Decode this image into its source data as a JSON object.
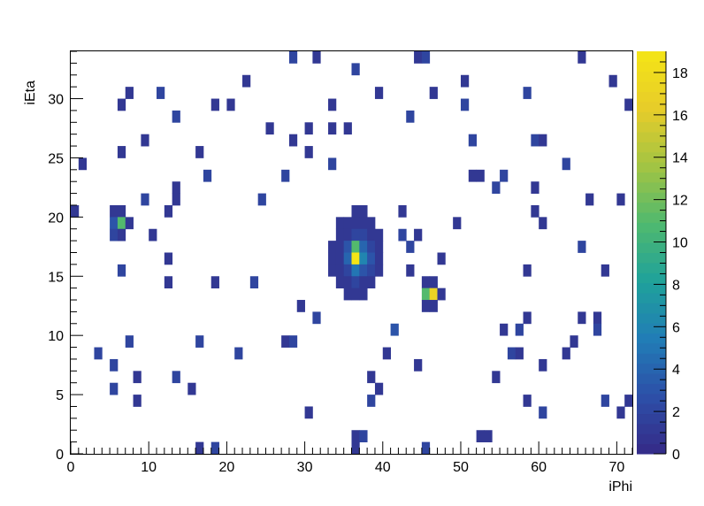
{
  "chart_data": {
    "type": "heatmap",
    "xlabel": "iPhi",
    "ylabel": "iEta",
    "xlim": [
      0,
      72
    ],
    "ylim": [
      0,
      34
    ],
    "zlim": [
      0,
      19
    ],
    "x_ticks": [
      0,
      10,
      20,
      30,
      40,
      50,
      60,
      70
    ],
    "y_ticks": [
      0,
      5,
      10,
      15,
      20,
      25,
      30
    ],
    "z_ticks": [
      0,
      2,
      4,
      6,
      8,
      10,
      12,
      14,
      16,
      18
    ],
    "palette": [
      "#352a87",
      "#2d4fa8",
      "#217db6",
      "#1fa19b",
      "#4fb96f",
      "#a2c443",
      "#e7cc2a",
      "#f4e516"
    ],
    "cells": [
      [
        28,
        33,
        2
      ],
      [
        31,
        33,
        1
      ],
      [
        44,
        33,
        1
      ],
      [
        45,
        33,
        2
      ],
      [
        65,
        33,
        1
      ],
      [
        36,
        32,
        2
      ],
      [
        22,
        31,
        1
      ],
      [
        50,
        31,
        1
      ],
      [
        69,
        31,
        1
      ],
      [
        7,
        30,
        1
      ],
      [
        11,
        30,
        2
      ],
      [
        39,
        30,
        1
      ],
      [
        46,
        30,
        1
      ],
      [
        58,
        30,
        2
      ],
      [
        6,
        29,
        1
      ],
      [
        18,
        29,
        1
      ],
      [
        20,
        29,
        1
      ],
      [
        33,
        29,
        1
      ],
      [
        50,
        29,
        2
      ],
      [
        71,
        29,
        1
      ],
      [
        13,
        28,
        2
      ],
      [
        43,
        28,
        2
      ],
      [
        25,
        27,
        1
      ],
      [
        30,
        27,
        1
      ],
      [
        33,
        27,
        1
      ],
      [
        35,
        27,
        1
      ],
      [
        9,
        26,
        1
      ],
      [
        28,
        26,
        1
      ],
      [
        51,
        26,
        2
      ],
      [
        59,
        26,
        2
      ],
      [
        60,
        26,
        1
      ],
      [
        6,
        25,
        1
      ],
      [
        16,
        25,
        1
      ],
      [
        30,
        25,
        1
      ],
      [
        1,
        24,
        1
      ],
      [
        33,
        24,
        2
      ],
      [
        63,
        24,
        2
      ],
      [
        17,
        23,
        2
      ],
      [
        27,
        23,
        2
      ],
      [
        51,
        23,
        1
      ],
      [
        52,
        23,
        1
      ],
      [
        55,
        23,
        2
      ],
      [
        13,
        22,
        1
      ],
      [
        54,
        22,
        2
      ],
      [
        59,
        22,
        1
      ],
      [
        9,
        21,
        2
      ],
      [
        13,
        21,
        1
      ],
      [
        24,
        21,
        2
      ],
      [
        66,
        21,
        1
      ],
      [
        70,
        21,
        1
      ],
      [
        0,
        20,
        1
      ],
      [
        5,
        20,
        1
      ],
      [
        6,
        20,
        1
      ],
      [
        12,
        20,
        1
      ],
      [
        36,
        20,
        1
      ],
      [
        37,
        20,
        1
      ],
      [
        42,
        20,
        1
      ],
      [
        59,
        20,
        1
      ],
      [
        5,
        19,
        3
      ],
      [
        6,
        19,
        11
      ],
      [
        7,
        19,
        1
      ],
      [
        34,
        19,
        1
      ],
      [
        35,
        19,
        1
      ],
      [
        36,
        19,
        1
      ],
      [
        37,
        19,
        1
      ],
      [
        38,
        19,
        1
      ],
      [
        49,
        19,
        1
      ],
      [
        60,
        19,
        1
      ],
      [
        5,
        18,
        2
      ],
      [
        6,
        18,
        1
      ],
      [
        10,
        18,
        1
      ],
      [
        34,
        18,
        1
      ],
      [
        35,
        18,
        1
      ],
      [
        36,
        18,
        2
      ],
      [
        37,
        18,
        2
      ],
      [
        38,
        18,
        1
      ],
      [
        39,
        18,
        1
      ],
      [
        42,
        18,
        2
      ],
      [
        44,
        18,
        1
      ],
      [
        33,
        17,
        1
      ],
      [
        34,
        17,
        1
      ],
      [
        35,
        17,
        3
      ],
      [
        36,
        17,
        11
      ],
      [
        37,
        17,
        4
      ],
      [
        38,
        17,
        2
      ],
      [
        39,
        17,
        1
      ],
      [
        43,
        17,
        2
      ],
      [
        65,
        17,
        2
      ],
      [
        12,
        16,
        1
      ],
      [
        33,
        16,
        1
      ],
      [
        34,
        16,
        1
      ],
      [
        35,
        16,
        4
      ],
      [
        36,
        16,
        19
      ],
      [
        37,
        16,
        6
      ],
      [
        38,
        16,
        3
      ],
      [
        39,
        16,
        1
      ],
      [
        47,
        16,
        1
      ],
      [
        6,
        15,
        2
      ],
      [
        33,
        15,
        1
      ],
      [
        34,
        15,
        1
      ],
      [
        35,
        15,
        2
      ],
      [
        36,
        15,
        5
      ],
      [
        37,
        15,
        3
      ],
      [
        38,
        15,
        2
      ],
      [
        39,
        15,
        1
      ],
      [
        43,
        15,
        1
      ],
      [
        58,
        15,
        1
      ],
      [
        68,
        15,
        1
      ],
      [
        12,
        14,
        1
      ],
      [
        18,
        14,
        1
      ],
      [
        23,
        14,
        2
      ],
      [
        34,
        14,
        1
      ],
      [
        35,
        14,
        1
      ],
      [
        36,
        14,
        2
      ],
      [
        37,
        14,
        1
      ],
      [
        38,
        14,
        1
      ],
      [
        45,
        14,
        1
      ],
      [
        46,
        14,
        1
      ],
      [
        35,
        13,
        1
      ],
      [
        36,
        13,
        1
      ],
      [
        37,
        13,
        1
      ],
      [
        45,
        13,
        11
      ],
      [
        46,
        13,
        17
      ],
      [
        47,
        13,
        1
      ],
      [
        29,
        12,
        1
      ],
      [
        45,
        12,
        1
      ],
      [
        46,
        12,
        1
      ],
      [
        31,
        11,
        2
      ],
      [
        58,
        11,
        1
      ],
      [
        65,
        11,
        1
      ],
      [
        67,
        11,
        1
      ],
      [
        41,
        10,
        3
      ],
      [
        55,
        10,
        1
      ],
      [
        57,
        10,
        2
      ],
      [
        67,
        10,
        2
      ],
      [
        7,
        9,
        2
      ],
      [
        16,
        9,
        2
      ],
      [
        27,
        9,
        1
      ],
      [
        28,
        9,
        2
      ],
      [
        64,
        9,
        1
      ],
      [
        3,
        8,
        2
      ],
      [
        21,
        8,
        2
      ],
      [
        40,
        8,
        1
      ],
      [
        56,
        8,
        2
      ],
      [
        57,
        8,
        1
      ],
      [
        63,
        8,
        1
      ],
      [
        5,
        7,
        2
      ],
      [
        44,
        7,
        1
      ],
      [
        60,
        7,
        1
      ],
      [
        8,
        6,
        1
      ],
      [
        13,
        6,
        2
      ],
      [
        38,
        6,
        1
      ],
      [
        54,
        6,
        1
      ],
      [
        5,
        5,
        2
      ],
      [
        15,
        5,
        1
      ],
      [
        39,
        5,
        1
      ],
      [
        8,
        4,
        1
      ],
      [
        38,
        4,
        2
      ],
      [
        58,
        4,
        1
      ],
      [
        68,
        4,
        2
      ],
      [
        71,
        4,
        1
      ],
      [
        30,
        3,
        1
      ],
      [
        60,
        3,
        2
      ],
      [
        70,
        3,
        1
      ],
      [
        36,
        1,
        1
      ],
      [
        37,
        1,
        2
      ],
      [
        52,
        1,
        1
      ],
      [
        53,
        1,
        1
      ],
      [
        16,
        0,
        1
      ],
      [
        18,
        0,
        2
      ],
      [
        36,
        0,
        1
      ],
      [
        45,
        0,
        2
      ]
    ]
  }
}
